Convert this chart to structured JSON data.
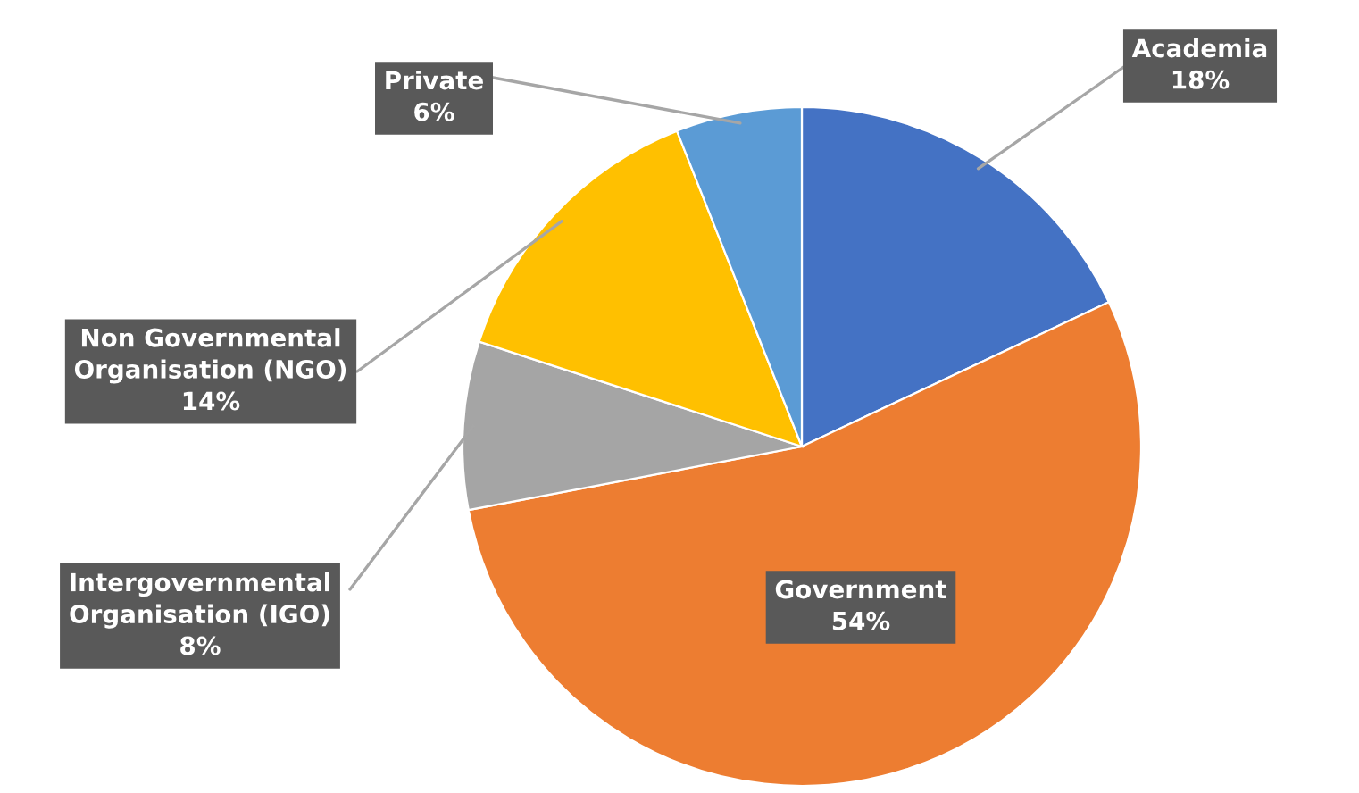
{
  "chart_data": {
    "type": "pie",
    "categories": [
      "Academia",
      "Government",
      "Intergovernmental\nOrganisation (IGO)",
      "Non Governmental\nOrganisation (NGO)",
      "Private"
    ],
    "values": [
      18,
      54,
      8,
      14,
      6
    ],
    "value_labels": [
      "18%",
      "54%",
      "8%",
      "14%",
      "6%"
    ],
    "colors": [
      "#4472c4",
      "#ed7d31",
      "#a5a5a5",
      "#ffc000",
      "#5b9bd5"
    ]
  }
}
